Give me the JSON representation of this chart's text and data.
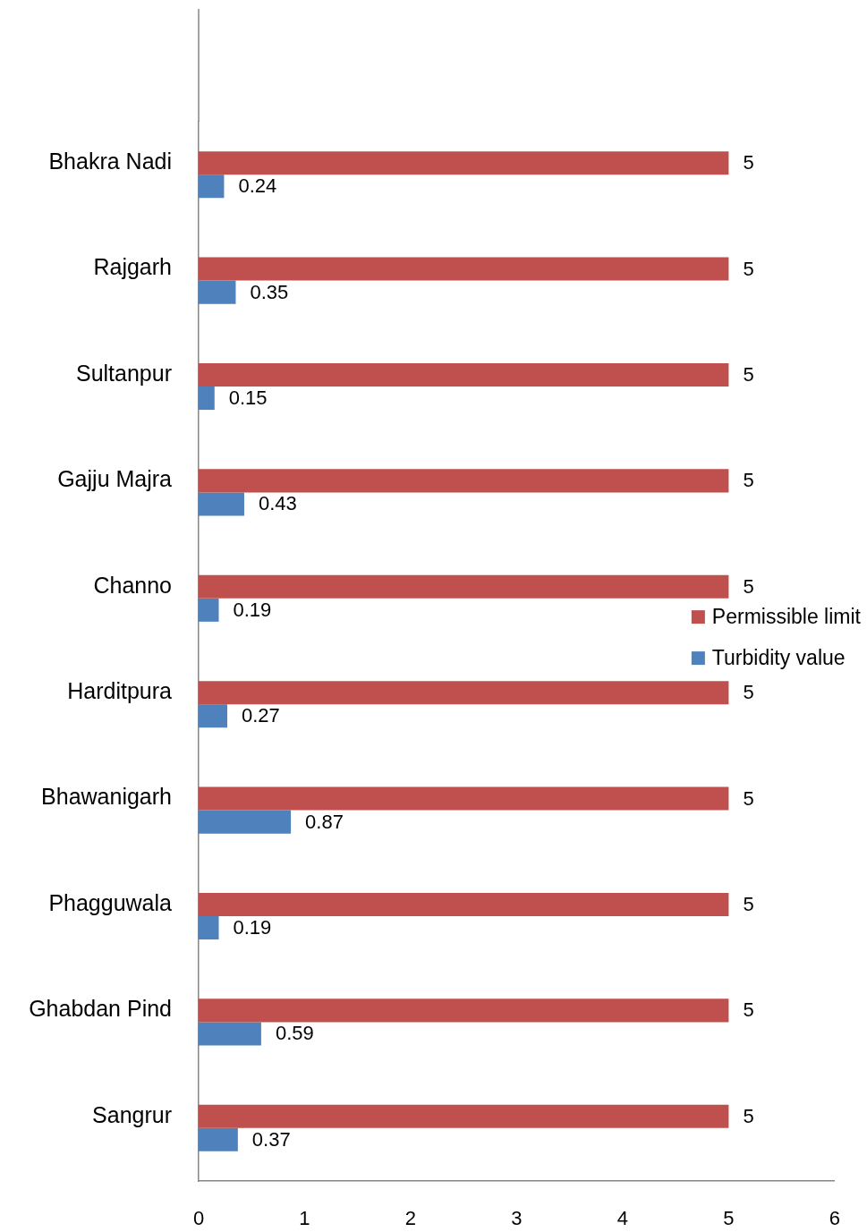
{
  "chart_data": {
    "type": "bar",
    "orientation": "horizontal",
    "categories": [
      "Bhakra Nadi",
      "Rajgarh",
      "Sultanpur",
      "Gajju Majra",
      "Channo",
      "Harditpura",
      "Bhawanigarh",
      "Phagguwala",
      "Ghabdan Pind",
      "Sangrur"
    ],
    "series": [
      {
        "name": "Permissible limit",
        "color": "#c0504d",
        "values": [
          5,
          5,
          5,
          5,
          5,
          5,
          5,
          5,
          5,
          5
        ]
      },
      {
        "name": "Turbidity value",
        "color": "#4f81bd",
        "values": [
          0.24,
          0.35,
          0.15,
          0.43,
          0.19,
          0.27,
          0.87,
          0.19,
          0.59,
          0.37
        ]
      }
    ],
    "xlim": [
      0,
      6
    ],
    "xticks": [
      0,
      1,
      2,
      3,
      4,
      5,
      6
    ],
    "legend": "right",
    "data_labels": true
  }
}
